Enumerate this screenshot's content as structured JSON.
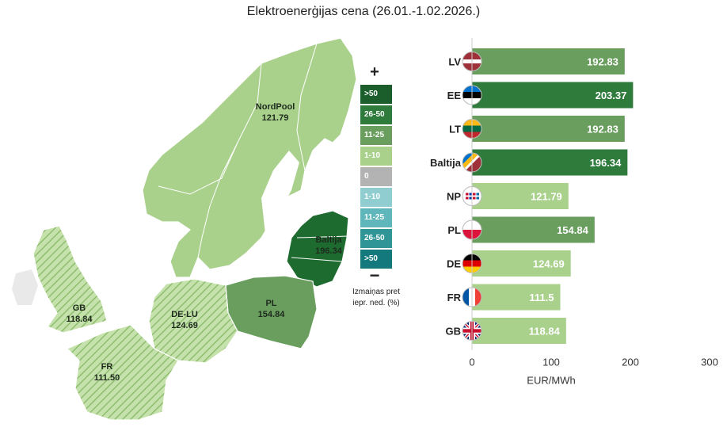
{
  "title": "Elektroenerģijas cena (26.01.-1.02.2026.)",
  "legend": {
    "plus": "+",
    "minus": "−",
    "caption_line1": "Izmaiņas pret",
    "caption_line2": "iepr. ned. (%)",
    "items": [
      {
        "label": ">50",
        "color": "#1b5e2c"
      },
      {
        "label": "26-50",
        "color": "#2e7b3c"
      },
      {
        "label": "11-25",
        "color": "#6a9e5e"
      },
      {
        "label": "1-10",
        "color": "#a9d18c"
      },
      {
        "label": "0",
        "color": "#b3b3b3"
      },
      {
        "label": "1-10",
        "color": "#8fcdd0"
      },
      {
        "label": "11-25",
        "color": "#5fb7bb"
      },
      {
        "label": "26-50",
        "color": "#2f9597"
      },
      {
        "label": ">50",
        "color": "#13797c"
      }
    ]
  },
  "map": {
    "nordpool": {
      "name": "NordPool",
      "value": "121.79"
    },
    "baltija": {
      "name": "Baltija",
      "value": "196.34"
    },
    "pl": {
      "name": "PL",
      "value": "154.84"
    },
    "delu": {
      "name": "DE-LU",
      "value": "124.69"
    },
    "gb": {
      "name": "GB",
      "value": "118.84"
    },
    "fr": {
      "name": "FR",
      "value": "111.50"
    },
    "colors": {
      "light": "#a9d18c",
      "mid": "#6a9e5e",
      "dark": "#2e7b3c",
      "baltic": "#1e6b30",
      "hatch": "#8fbd70"
    }
  },
  "chart_data": {
    "type": "bar",
    "orientation": "horizontal",
    "categories": [
      "LV",
      "EE",
      "LT",
      "Baltija",
      "NP",
      "PL",
      "DE",
      "FR",
      "GB"
    ],
    "values": [
      192.83,
      203.37,
      192.83,
      196.34,
      121.79,
      154.84,
      124.69,
      111.5,
      118.84
    ],
    "value_labels": [
      "192.83",
      "203.37",
      "192.83",
      "196.34",
      "121.79",
      "154.84",
      "124.69",
      "111.5",
      "118.84"
    ],
    "colors": [
      "#6a9e5e",
      "#2e7b3c",
      "#6a9e5e",
      "#2e7b3c",
      "#a9d18c",
      "#6a9e5e",
      "#a9d18c",
      "#a9d18c",
      "#a9d18c"
    ],
    "xlabel": "EUR/MWh",
    "xlim": [
      0,
      300
    ],
    "xticks": [
      0,
      100,
      200,
      300
    ],
    "xtick_labels": [
      "0",
      "100",
      "200",
      "300"
    ],
    "grid": false,
    "flags": [
      "lv-flag-icon",
      "ee-flag-icon",
      "lt-flag-icon",
      "baltic-flag-icon",
      "np-flag-icon",
      "pl-flag-icon",
      "de-flag-icon",
      "fr-flag-icon",
      "gb-flag-icon"
    ]
  }
}
